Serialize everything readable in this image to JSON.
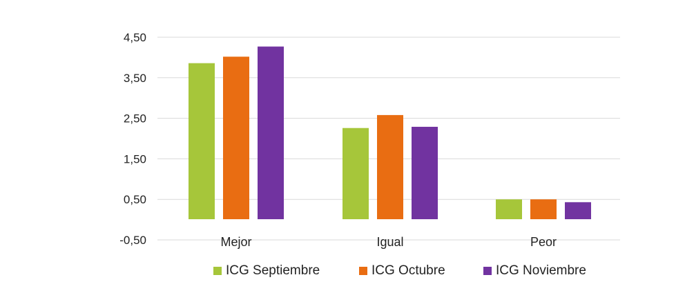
{
  "chart_data": {
    "type": "bar",
    "categories": [
      "Mejor",
      "Igual",
      "Peor"
    ],
    "series": [
      {
        "name": "ICG Septiembre",
        "values": [
          3.86,
          2.26,
          0.5
        ],
        "color": "#a6c63a"
      },
      {
        "name": "ICG Octubre",
        "values": [
          4.02,
          2.58,
          0.5
        ],
        "color": "#e96d12"
      },
      {
        "name": "ICG Noviembre",
        "values": [
          4.27,
          2.29,
          0.43
        ],
        "color": "#7133a0"
      }
    ],
    "yticks": [
      "-0,50",
      "0,50",
      "1,50",
      "2,50",
      "3,50",
      "4,50"
    ],
    "ytick_values": [
      -0.5,
      0.5,
      1.5,
      2.5,
      3.5,
      4.5
    ],
    "ylim": [
      -0.5,
      4.5
    ],
    "grid": true,
    "legend": "bottom",
    "title": "",
    "xlabel": "",
    "ylabel": ""
  }
}
